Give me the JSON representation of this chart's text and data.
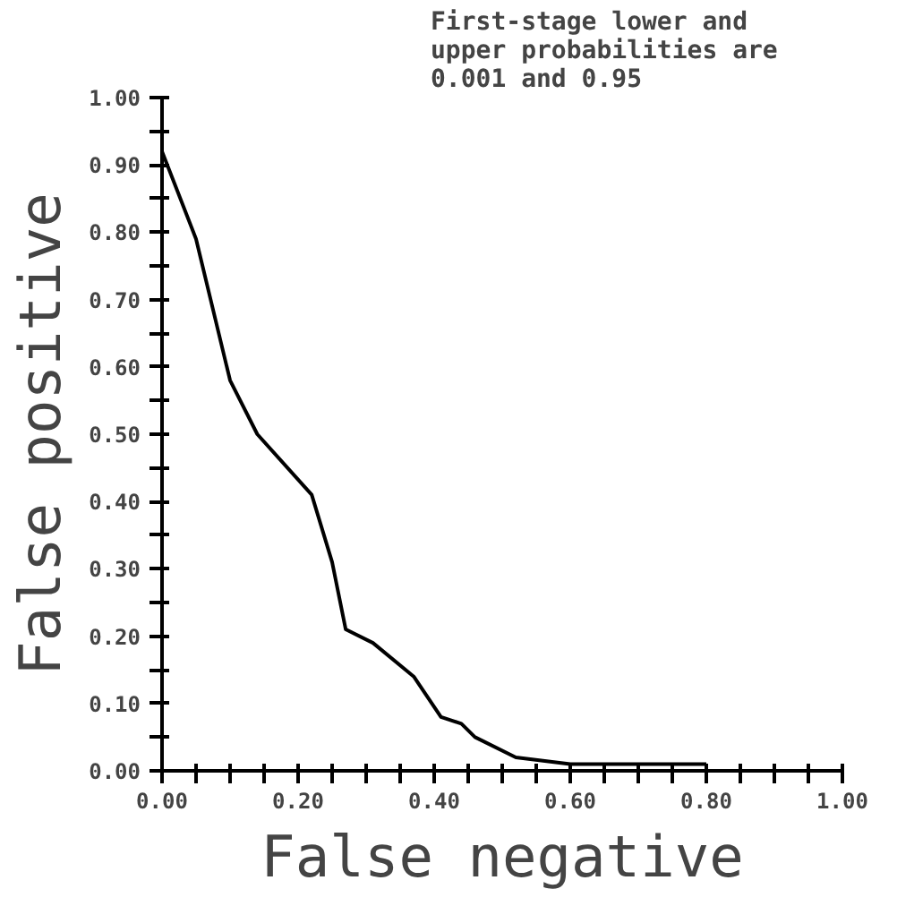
{
  "chart_data": {
    "type": "line",
    "title": "First-stage lower and\nupper probabilities are\n0.001 and 0.95",
    "xlabel": "False negative",
    "ylabel": "False positive",
    "x": [
      0,
      0.05,
      0.1,
      0.14,
      0.22,
      0.25,
      0.27,
      0.31,
      0.37,
      0.41,
      0.44,
      0.46,
      0.52,
      0.6,
      0.8
    ],
    "series": [
      {
        "color": "#000000",
        "values": [
          0.92,
          0.79,
          0.58,
          0.5,
          0.41,
          0.31,
          0.21,
          0.19,
          0.14,
          0.08,
          0.07,
          0.05,
          0.02,
          0.01,
          0.01
        ]
      }
    ],
    "xlim": [
      0,
      1
    ],
    "ylim": [
      0,
      1
    ],
    "xticks": [
      {
        "value": 0,
        "label": "0.00"
      },
      {
        "value": 0.05,
        "label": null
      },
      {
        "value": 0.1,
        "label": null
      },
      {
        "value": 0.15,
        "label": null
      },
      {
        "value": 0.2,
        "label": "0.20"
      },
      {
        "value": 0.25,
        "label": null
      },
      {
        "value": 0.3,
        "label": null
      },
      {
        "value": 0.35,
        "label": null
      },
      {
        "value": 0.4,
        "label": "0.40"
      },
      {
        "value": 0.45,
        "label": null
      },
      {
        "value": 0.5,
        "label": null
      },
      {
        "value": 0.55,
        "label": null
      },
      {
        "value": 0.6,
        "label": "0.60"
      },
      {
        "value": 0.65,
        "label": null
      },
      {
        "value": 0.7,
        "label": null
      },
      {
        "value": 0.75,
        "label": null
      },
      {
        "value": 0.8,
        "label": "0.80"
      },
      {
        "value": 0.85,
        "label": null
      },
      {
        "value": 0.9,
        "label": null
      },
      {
        "value": 0.95,
        "label": null
      },
      {
        "value": 1,
        "label": "1.00"
      }
    ],
    "yticks": [
      {
        "value": 0,
        "label": "0.00"
      },
      {
        "value": 0.05,
        "label": null
      },
      {
        "value": 0.1,
        "label": "0.10"
      },
      {
        "value": 0.15,
        "label": null
      },
      {
        "value": 0.2,
        "label": "0.20"
      },
      {
        "value": 0.25,
        "label": null
      },
      {
        "value": 0.3,
        "label": "0.30"
      },
      {
        "value": 0.35,
        "label": null
      },
      {
        "value": 0.4,
        "label": "0.40"
      },
      {
        "value": 0.45,
        "label": null
      },
      {
        "value": 0.5,
        "label": "0.50"
      },
      {
        "value": 0.55,
        "label": null
      },
      {
        "value": 0.6,
        "label": "0.60"
      },
      {
        "value": 0.65,
        "label": null
      },
      {
        "value": 0.7,
        "label": "0.70"
      },
      {
        "value": 0.75,
        "label": null
      },
      {
        "value": 0.8,
        "label": "0.80"
      },
      {
        "value": 0.85,
        "label": null
      },
      {
        "value": 0.9,
        "label": "0.90"
      },
      {
        "value": 0.95,
        "label": null
      },
      {
        "value": 1,
        "label": "1.00"
      }
    ],
    "grid": false,
    "marker": "none",
    "line_style": "solid"
  }
}
